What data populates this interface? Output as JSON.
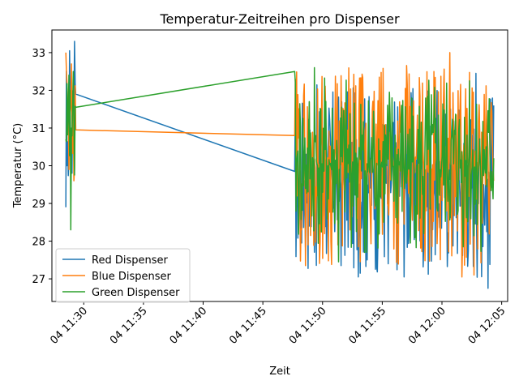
{
  "chart_data": {
    "type": "line",
    "title": "Temperatur-Zeitreihen pro Dispenser",
    "xlabel": "Zeit",
    "ylabel": "Temperatur (°C)",
    "x_is_time": true,
    "xlim": [
      "04 11:27:20",
      "04 12:05:30"
    ],
    "ylim": [
      26.4,
      33.6
    ],
    "x_ticks": [
      {
        "t": "04 11:30:00",
        "label": "04 11:30"
      },
      {
        "t": "04 11:35:00",
        "label": "04 11:35"
      },
      {
        "t": "04 11:40:00",
        "label": "04 11:40"
      },
      {
        "t": "04 11:45:00",
        "label": "04 11:45"
      },
      {
        "t": "04 11:50:00",
        "label": "04 11:50"
      },
      {
        "t": "04 11:55:00",
        "label": "04 11:55"
      },
      {
        "t": "04 12:00:00",
        "label": "04 12:00"
      },
      {
        "t": "04 12:05:00",
        "label": "04 12:05"
      }
    ],
    "y_ticks": [
      27,
      28,
      29,
      30,
      31,
      32,
      33
    ],
    "grid": false,
    "legend_position": "lower-left",
    "series": [
      {
        "name": "Red Dispenser",
        "color": "#1f77b4",
        "segments": [
          {
            "t_start": "04 11:28:30",
            "t_end": "04 11:29:20",
            "min": 28.9,
            "max": 33.3,
            "seed": 11,
            "anchors": [
              [
                0,
                28.9
              ],
              [
                0.1,
                30.0
              ],
              [
                0.35,
                33.05
              ],
              [
                0.6,
                29.8
              ],
              [
                0.85,
                33.3
              ],
              [
                1.0,
                31.9
              ]
            ]
          },
          {
            "t_start": "04 11:29:20",
            "t_end": "04 11:47:40",
            "min": 29.85,
            "max": 31.9,
            "seed": 0,
            "anchors": [
              [
                0,
                31.9
              ],
              [
                1,
                29.85
              ]
            ]
          },
          {
            "t_start": "04 11:47:40",
            "t_end": "04 12:04:20",
            "min": 26.75,
            "max": 32.45,
            "seed": 17,
            "anchors": [
              [
                0,
                29.85
              ],
              [
                0.03,
                28.25
              ],
              [
                0.47,
                27.4
              ],
              [
                0.7,
                29.3
              ],
              [
                0.75,
                32.4
              ],
              [
                0.91,
                32.45
              ],
              [
                0.97,
                26.75
              ],
              [
                1.0,
                31.6
              ]
            ]
          }
        ]
      },
      {
        "name": "Blue Dispenser",
        "color": "#ff7f0e",
        "segments": [
          {
            "t_start": "04 11:28:30",
            "t_end": "04 11:29:20",
            "min": 29.6,
            "max": 33.0,
            "seed": 23,
            "anchors": [
              [
                0,
                33.0
              ],
              [
                0.3,
                29.9
              ],
              [
                0.55,
                32.7
              ],
              [
                0.8,
                29.6
              ],
              [
                1.0,
                30.95
              ]
            ]
          },
          {
            "t_start": "04 11:29:20",
            "t_end": "04 11:47:40",
            "min": 30.8,
            "max": 30.95,
            "seed": 0,
            "anchors": [
              [
                0,
                30.95
              ],
              [
                1,
                30.8
              ]
            ]
          },
          {
            "t_start": "04 11:47:40",
            "t_end": "04 12:04:20",
            "min": 27.05,
            "max": 33.0,
            "seed": 29,
            "anchors": [
              [
                0,
                30.8
              ],
              [
                0.08,
                28.15
              ],
              [
                0.32,
                27.85
              ],
              [
                0.7,
                32.5
              ],
              [
                0.78,
                33.0
              ],
              [
                0.84,
                27.05
              ],
              [
                0.9,
                27.1
              ],
              [
                1.0,
                29.6
              ]
            ]
          }
        ]
      },
      {
        "name": "Green Dispenser",
        "color": "#2ca02c",
        "segments": [
          {
            "t_start": "04 11:28:30",
            "t_end": "04 11:29:20",
            "min": 28.3,
            "max": 32.5,
            "seed": 37,
            "anchors": [
              [
                0,
                30.7
              ],
              [
                0.3,
                32.4
              ],
              [
                0.5,
                28.3
              ],
              [
                0.75,
                32.5
              ],
              [
                1.0,
                31.55
              ]
            ]
          },
          {
            "t_start": "04 11:29:20",
            "t_end": "04 11:47:40",
            "min": 31.55,
            "max": 32.5,
            "seed": 0,
            "anchors": [
              [
                0,
                31.55
              ],
              [
                1,
                32.5
              ]
            ]
          },
          {
            "t_start": "04 11:47:40",
            "t_end": "04 12:04:20",
            "min": 27.45,
            "max": 32.6,
            "seed": 41,
            "anchors": [
              [
                0,
                32.5
              ],
              [
                0.1,
                32.6
              ],
              [
                0.22,
                27.45
              ],
              [
                0.35,
                27.7
              ],
              [
                0.65,
                28.2
              ],
              [
                0.88,
                32.25
              ],
              [
                1.0,
                30.2
              ]
            ]
          }
        ]
      }
    ]
  }
}
